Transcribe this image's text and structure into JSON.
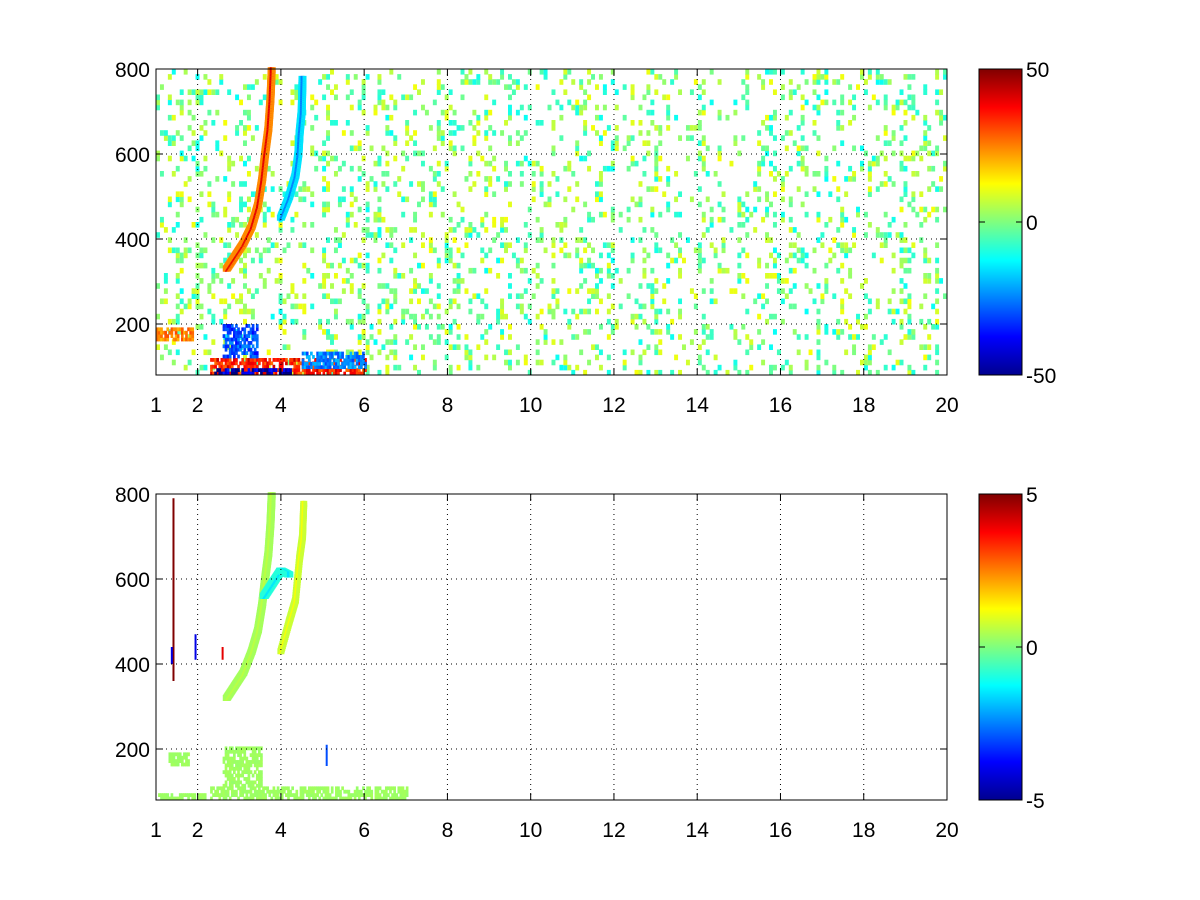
{
  "chart_data": [
    {
      "type": "heatmap",
      "title": "",
      "xlabel": "",
      "ylabel": "",
      "xlim": [
        1,
        20
      ],
      "ylim": [
        80,
        800
      ],
      "xticks": [
        1,
        2,
        4,
        6,
        8,
        10,
        12,
        14,
        16,
        18,
        20
      ],
      "yticks": [
        200,
        400,
        600,
        800
      ],
      "grid": true,
      "grid_style": "dotted",
      "colormap": "jet",
      "colorbar": {
        "min": -50,
        "max": 50,
        "ticks": [
          50,
          0,
          -50
        ],
        "placement": "right"
      },
      "features": [
        {
          "kind": "curve",
          "value": 40,
          "width": 0.08,
          "points": [
            [
              2.7,
              330
            ],
            [
              2.9,
              360
            ],
            [
              3.1,
              390
            ],
            [
              3.3,
              430
            ],
            [
              3.45,
              480
            ],
            [
              3.55,
              540
            ],
            [
              3.62,
              600
            ],
            [
              3.7,
              660
            ],
            [
              3.75,
              730
            ],
            [
              3.78,
              800
            ]
          ]
        },
        {
          "kind": "curve",
          "value": -25,
          "width": 0.08,
          "points": [
            [
              4.0,
              450
            ],
            [
              4.2,
              500
            ],
            [
              4.35,
              550
            ],
            [
              4.42,
              600
            ],
            [
              4.45,
              650
            ],
            [
              4.5,
              700
            ],
            [
              4.52,
              780
            ]
          ]
        },
        {
          "kind": "band",
          "value": 35,
          "x": [
            2.3,
            6.0
          ],
          "y": [
            80,
            115
          ]
        },
        {
          "kind": "band",
          "value": -45,
          "x": [
            2.4,
            4.2
          ],
          "y": [
            80,
            92
          ]
        },
        {
          "kind": "band",
          "value": -30,
          "x": [
            2.6,
            3.4
          ],
          "y": [
            120,
            200
          ]
        },
        {
          "kind": "band",
          "value": -25,
          "x": [
            4.5,
            6.0
          ],
          "y": [
            95,
            130
          ]
        },
        {
          "kind": "band",
          "value": 25,
          "x": [
            1.0,
            1.9
          ],
          "y": [
            160,
            190
          ]
        }
      ],
      "background": {
        "kind": "scattered_noise",
        "values": [
          -12,
          12
        ],
        "density": 0.35
      }
    },
    {
      "type": "heatmap",
      "title": "",
      "xlabel": "",
      "ylabel": "",
      "xlim": [
        1,
        20
      ],
      "ylim": [
        80,
        800
      ],
      "xticks": [
        1,
        2,
        4,
        6,
        8,
        10,
        12,
        14,
        16,
        18,
        20
      ],
      "yticks": [
        200,
        400,
        600,
        800
      ],
      "grid": true,
      "grid_style": "dotted",
      "colormap": "jet",
      "colorbar": {
        "min": -5,
        "max": 5,
        "ticks": [
          5,
          0,
          -5
        ],
        "placement": "right"
      },
      "features": [
        {
          "kind": "curve",
          "value": 0.6,
          "width": 0.08,
          "points": [
            [
              2.7,
              320
            ],
            [
              2.9,
              350
            ],
            [
              3.1,
              380
            ],
            [
              3.3,
              430
            ],
            [
              3.45,
              480
            ],
            [
              3.55,
              540
            ],
            [
              3.62,
              600
            ],
            [
              3.7,
              660
            ],
            [
              3.75,
              730
            ],
            [
              3.78,
              800
            ]
          ]
        },
        {
          "kind": "curve",
          "value": 1.2,
          "width": 0.06,
          "points": [
            [
              4.0,
              430
            ],
            [
              4.2,
              500
            ],
            [
              4.35,
              550
            ],
            [
              4.45,
              650
            ],
            [
              4.52,
              700
            ],
            [
              4.55,
              780
            ]
          ]
        },
        {
          "kind": "curve",
          "value": -1.5,
          "width": 0.1,
          "points": [
            [
              3.6,
              560
            ],
            [
              3.8,
              590
            ],
            [
              4.0,
              620
            ],
            [
              4.2,
              610
            ]
          ]
        },
        {
          "kind": "band",
          "value": 0.3,
          "x": [
            2.3,
            7.0
          ],
          "y": [
            80,
            110
          ]
        },
        {
          "kind": "band",
          "value": 0.3,
          "x": [
            2.6,
            3.5
          ],
          "y": [
            110,
            200
          ]
        },
        {
          "kind": "band",
          "value": 0.3,
          "x": [
            1.3,
            1.8
          ],
          "y": [
            160,
            190
          ]
        },
        {
          "kind": "band",
          "value": 0.3,
          "x": [
            1.0,
            2.2
          ],
          "y": [
            80,
            90
          ]
        }
      ],
      "spikes": [
        {
          "x": 1.42,
          "y": [
            360,
            790
          ],
          "value": 5
        },
        {
          "x": 1.38,
          "y": [
            400,
            440
          ],
          "value": -4
        },
        {
          "x": 1.95,
          "y": [
            410,
            470
          ],
          "value": -4
        },
        {
          "x": 2.6,
          "y": [
            410,
            440
          ],
          "value": 4
        },
        {
          "x": 5.1,
          "y": [
            160,
            210
          ],
          "value": -3
        }
      ],
      "background": {
        "kind": "none"
      }
    }
  ]
}
